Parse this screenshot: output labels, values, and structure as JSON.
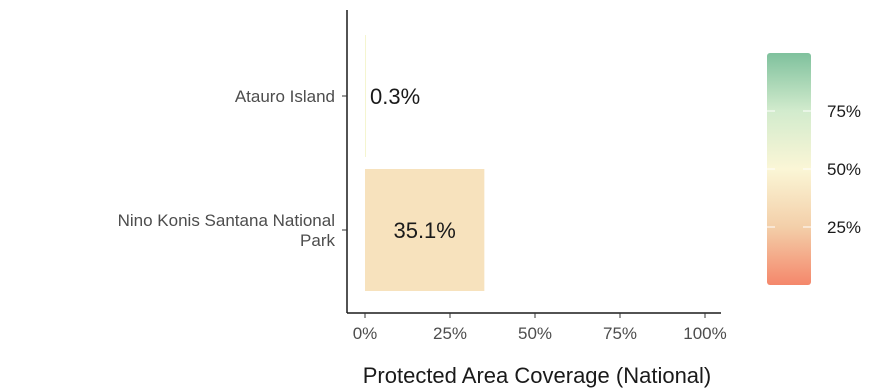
{
  "chart_data": {
    "type": "bar",
    "orientation": "horizontal",
    "categories": [
      "Atauro Island",
      "Nino Konis Santana National Park"
    ],
    "category_label_lines": [
      [
        "Atauro Island"
      ],
      [
        "Nino Konis Santana National",
        "Park"
      ]
    ],
    "values": [
      0.3,
      35.1
    ],
    "data_labels": [
      "0.3%",
      "35.1%"
    ],
    "xlabel": "Protected Area Coverage (National)",
    "ylabel": "",
    "title": "",
    "xlim": [
      0,
      100
    ],
    "x_ticks": [
      0,
      25,
      50,
      75,
      100
    ],
    "x_tick_labels": [
      "0%",
      "25%",
      "50%",
      "75%",
      "100%"
    ],
    "grid": false,
    "bar_colors": [
      "#f5f5d0",
      "#f7e2bd"
    ],
    "legend": {
      "type": "colorbar",
      "placement": "right",
      "range": [
        0,
        100
      ],
      "ticks": [
        25,
        50,
        75
      ],
      "tick_labels": [
        "25%",
        "50%",
        "75%"
      ],
      "colors": [
        "#f4876b",
        "#f3cfa9",
        "#fbf6d6",
        "#d2ebcd",
        "#7fc19d"
      ]
    }
  }
}
